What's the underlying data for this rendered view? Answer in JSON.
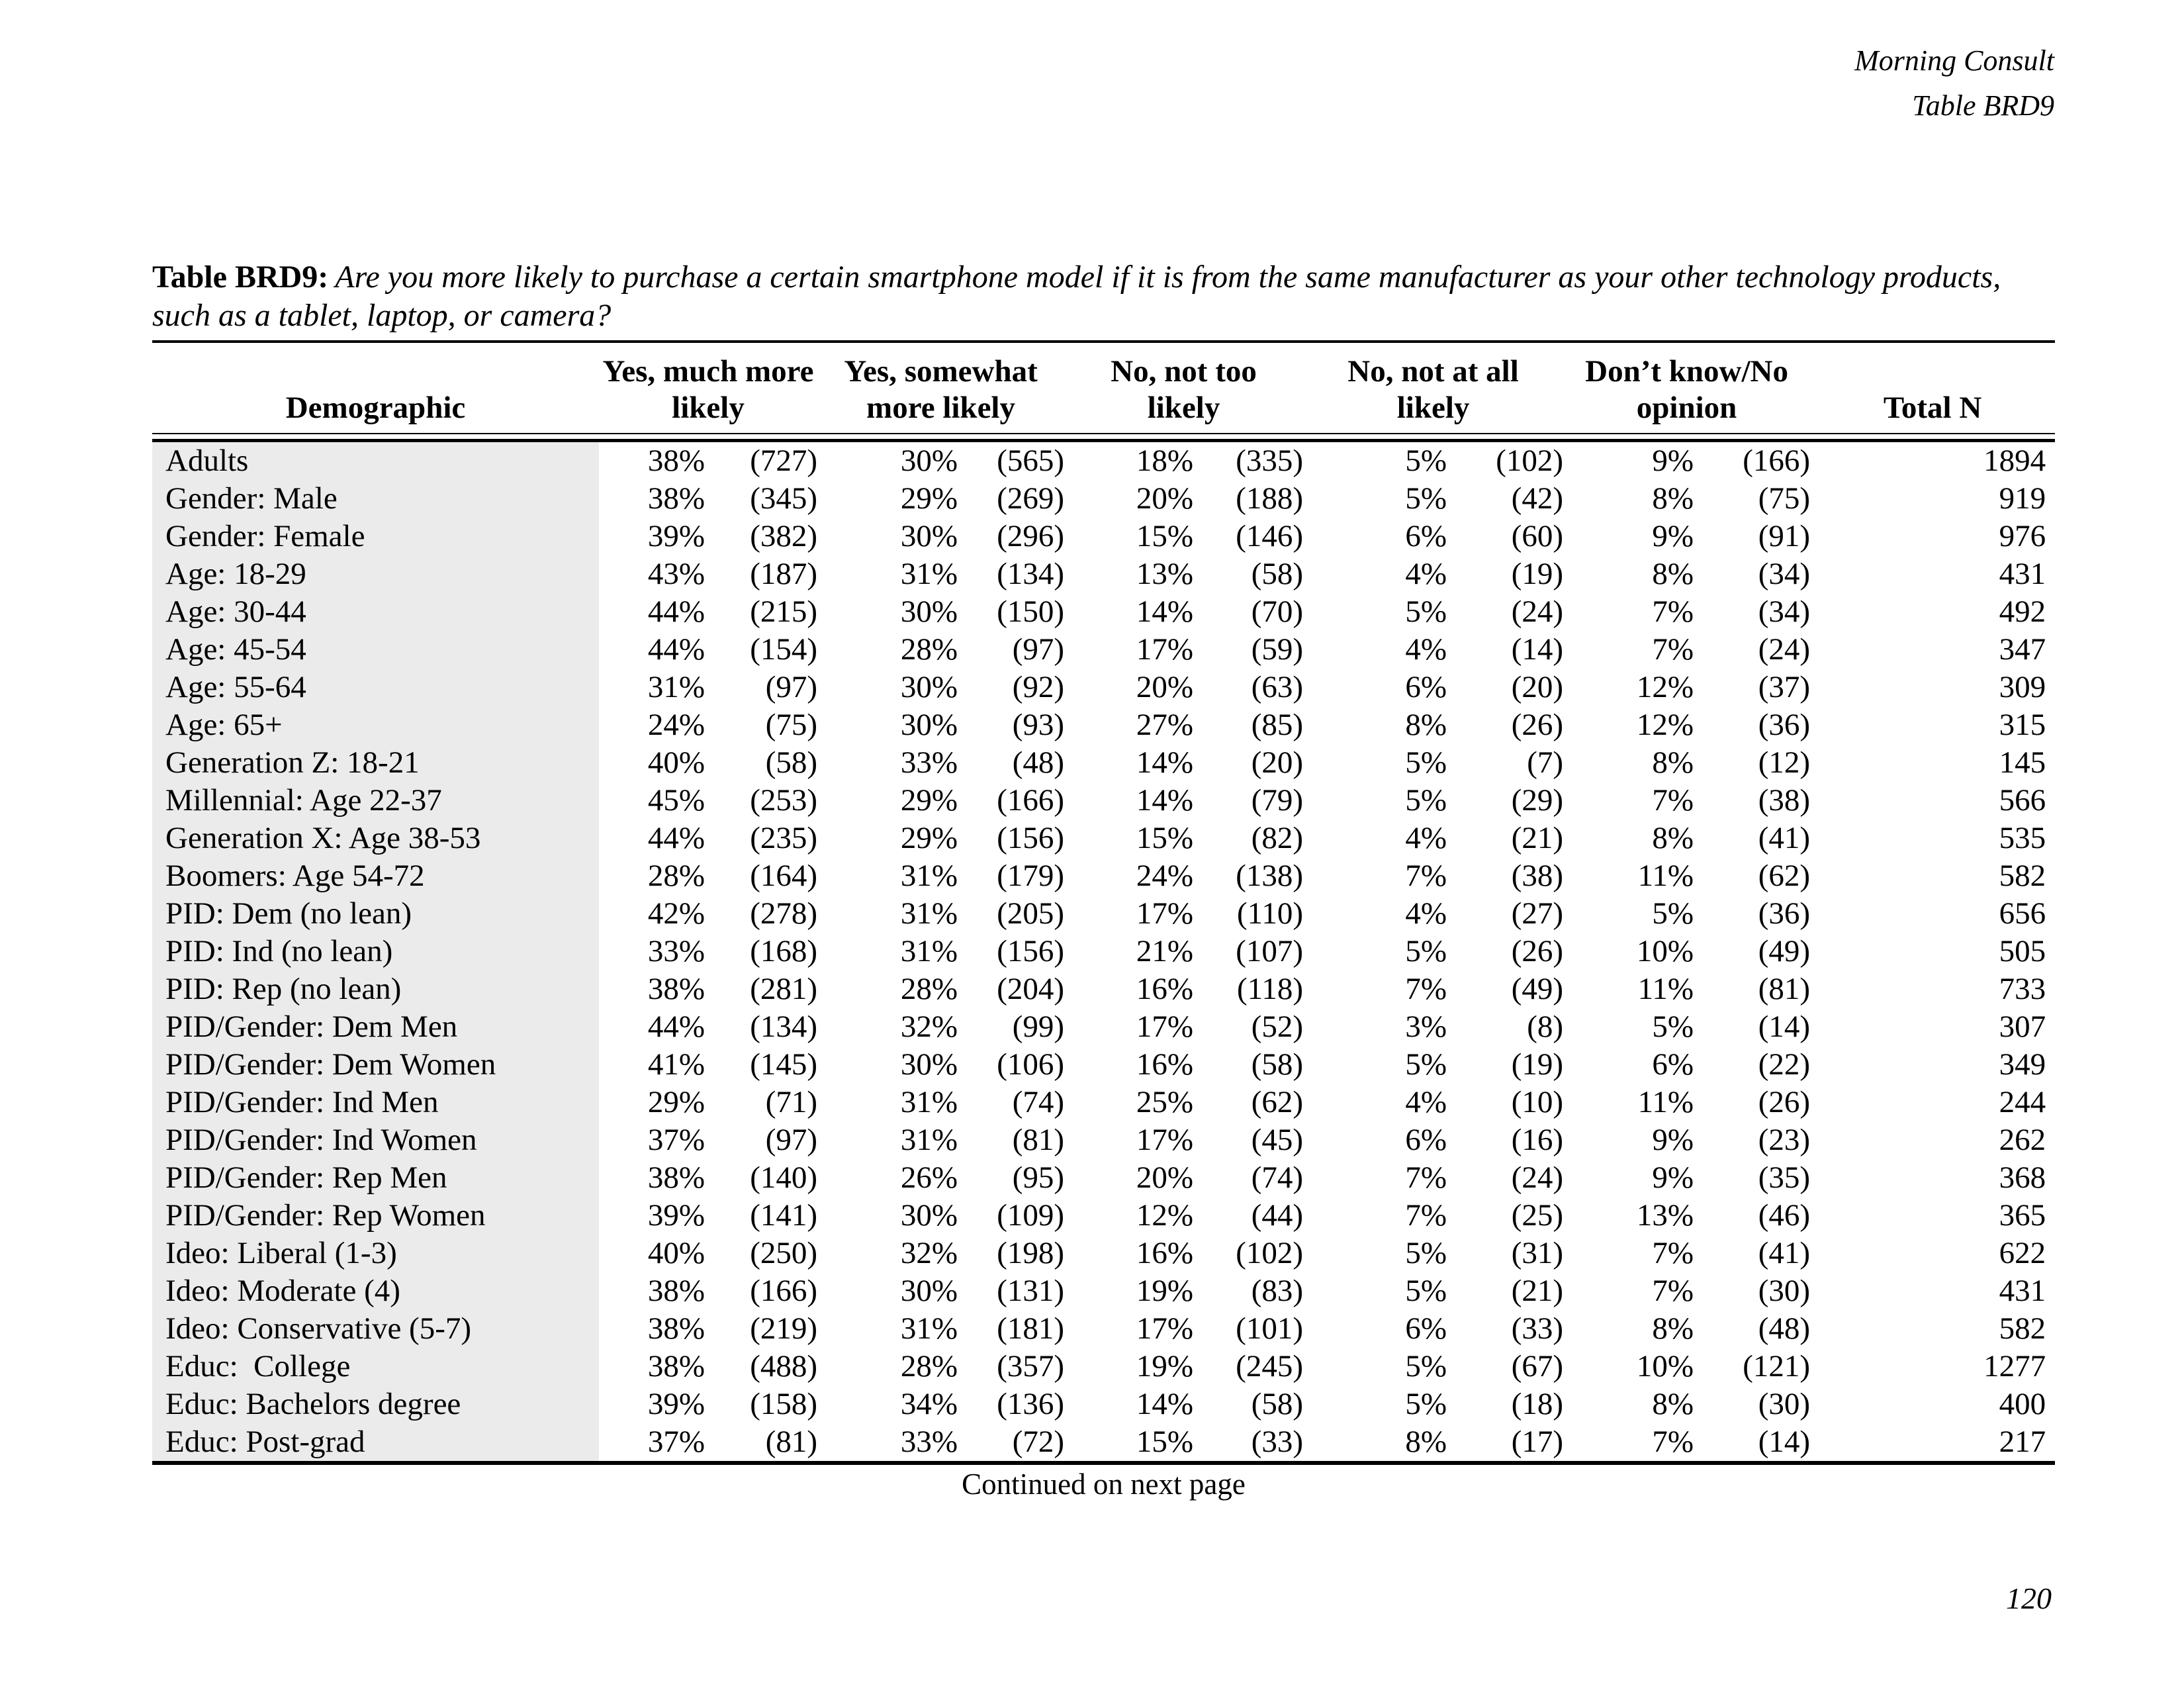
{
  "page": {
    "brand": "Morning Consult",
    "table_ref": "Table BRD9",
    "title_label": "Table BRD9:",
    "title_question": "Are you more likely to purchase a certain smartphone model if it is from the same manufacturer as your other technology products, such as a tablet, laptop, or camera?",
    "continued_note": "Continued on next page",
    "page_number": "120"
  },
  "table": {
    "demographic_header": "Demographic",
    "total_header": "Total N",
    "category_headers": [
      {
        "line1": "Yes, much more",
        "line2": "likely"
      },
      {
        "line1": "Yes, somewhat",
        "line2": "more likely"
      },
      {
        "line1": "No, not too",
        "line2": "likely"
      },
      {
        "line1": "No, not at all",
        "line2": "likely"
      },
      {
        "line1": "Don’t know/No",
        "line2": "opinion"
      }
    ],
    "rows": [
      {
        "demographic": "Adults",
        "values": [
          "38%",
          "(727)",
          "30%",
          "(565)",
          "18%",
          "(335)",
          "5%",
          "(102)",
          "9%",
          "(166)",
          "1894"
        ]
      },
      {
        "demographic": "Gender: Male",
        "values": [
          "38%",
          "(345)",
          "29%",
          "(269)",
          "20%",
          "(188)",
          "5%",
          "(42)",
          "8%",
          "(75)",
          "919"
        ]
      },
      {
        "demographic": "Gender: Female",
        "values": [
          "39%",
          "(382)",
          "30%",
          "(296)",
          "15%",
          "(146)",
          "6%",
          "(60)",
          "9%",
          "(91)",
          "976"
        ]
      },
      {
        "demographic": "Age: 18-29",
        "values": [
          "43%",
          "(187)",
          "31%",
          "(134)",
          "13%",
          "(58)",
          "4%",
          "(19)",
          "8%",
          "(34)",
          "431"
        ]
      },
      {
        "demographic": "Age: 30-44",
        "values": [
          "44%",
          "(215)",
          "30%",
          "(150)",
          "14%",
          "(70)",
          "5%",
          "(24)",
          "7%",
          "(34)",
          "492"
        ]
      },
      {
        "demographic": "Age: 45-54",
        "values": [
          "44%",
          "(154)",
          "28%",
          "(97)",
          "17%",
          "(59)",
          "4%",
          "(14)",
          "7%",
          "(24)",
          "347"
        ]
      },
      {
        "demographic": "Age: 55-64",
        "values": [
          "31%",
          "(97)",
          "30%",
          "(92)",
          "20%",
          "(63)",
          "6%",
          "(20)",
          "12%",
          "(37)",
          "309"
        ]
      },
      {
        "demographic": "Age: 65+",
        "values": [
          "24%",
          "(75)",
          "30%",
          "(93)",
          "27%",
          "(85)",
          "8%",
          "(26)",
          "12%",
          "(36)",
          "315"
        ]
      },
      {
        "demographic": "Generation Z: 18-21",
        "values": [
          "40%",
          "(58)",
          "33%",
          "(48)",
          "14%",
          "(20)",
          "5%",
          "(7)",
          "8%",
          "(12)",
          "145"
        ]
      },
      {
        "demographic": "Millennial: Age 22-37",
        "values": [
          "45%",
          "(253)",
          "29%",
          "(166)",
          "14%",
          "(79)",
          "5%",
          "(29)",
          "7%",
          "(38)",
          "566"
        ]
      },
      {
        "demographic": "Generation X: Age 38-53",
        "values": [
          "44%",
          "(235)",
          "29%",
          "(156)",
          "15%",
          "(82)",
          "4%",
          "(21)",
          "8%",
          "(41)",
          "535"
        ]
      },
      {
        "demographic": "Boomers: Age 54-72",
        "values": [
          "28%",
          "(164)",
          "31%",
          "(179)",
          "24%",
          "(138)",
          "7%",
          "(38)",
          "11%",
          "(62)",
          "582"
        ]
      },
      {
        "demographic": "PID: Dem (no lean)",
        "values": [
          "42%",
          "(278)",
          "31%",
          "(205)",
          "17%",
          "(110)",
          "4%",
          "(27)",
          "5%",
          "(36)",
          "656"
        ]
      },
      {
        "demographic": "PID: Ind (no lean)",
        "values": [
          "33%",
          "(168)",
          "31%",
          "(156)",
          "21%",
          "(107)",
          "5%",
          "(26)",
          "10%",
          "(49)",
          "505"
        ]
      },
      {
        "demographic": "PID: Rep (no lean)",
        "values": [
          "38%",
          "(281)",
          "28%",
          "(204)",
          "16%",
          "(118)",
          "7%",
          "(49)",
          "11%",
          "(81)",
          "733"
        ]
      },
      {
        "demographic": "PID/Gender: Dem Men",
        "values": [
          "44%",
          "(134)",
          "32%",
          "(99)",
          "17%",
          "(52)",
          "3%",
          "(8)",
          "5%",
          "(14)",
          "307"
        ]
      },
      {
        "demographic": "PID/Gender: Dem Women",
        "values": [
          "41%",
          "(145)",
          "30%",
          "(106)",
          "16%",
          "(58)",
          "5%",
          "(19)",
          "6%",
          "(22)",
          "349"
        ]
      },
      {
        "demographic": "PID/Gender: Ind Men",
        "values": [
          "29%",
          "(71)",
          "31%",
          "(74)",
          "25%",
          "(62)",
          "4%",
          "(10)",
          "11%",
          "(26)",
          "244"
        ]
      },
      {
        "demographic": "PID/Gender: Ind Women",
        "values": [
          "37%",
          "(97)",
          "31%",
          "(81)",
          "17%",
          "(45)",
          "6%",
          "(16)",
          "9%",
          "(23)",
          "262"
        ]
      },
      {
        "demographic": "PID/Gender: Rep Men",
        "values": [
          "38%",
          "(140)",
          "26%",
          "(95)",
          "20%",
          "(74)",
          "7%",
          "(24)",
          "9%",
          "(35)",
          "368"
        ]
      },
      {
        "demographic": "PID/Gender: Rep Women",
        "values": [
          "39%",
          "(141)",
          "30%",
          "(109)",
          "12%",
          "(44)",
          "7%",
          "(25)",
          "13%",
          "(46)",
          "365"
        ]
      },
      {
        "demographic": "Ideo: Liberal (1-3)",
        "values": [
          "40%",
          "(250)",
          "32%",
          "(198)",
          "16%",
          "(102)",
          "5%",
          "(31)",
          "7%",
          "(41)",
          "622"
        ]
      },
      {
        "demographic": "Ideo: Moderate (4)",
        "values": [
          "38%",
          "(166)",
          "30%",
          "(131)",
          "19%",
          "(83)",
          "5%",
          "(21)",
          "7%",
          "(30)",
          "431"
        ]
      },
      {
        "demographic": "Ideo: Conservative (5-7)",
        "values": [
          "38%",
          "(219)",
          "31%",
          "(181)",
          "17%",
          "(101)",
          "6%",
          "(33)",
          "8%",
          "(48)",
          "582"
        ]
      },
      {
        "demographic": "Educ:  College",
        "values": [
          "38%",
          "(488)",
          "28%",
          "(357)",
          "19%",
          "(245)",
          "5%",
          "(67)",
          "10%",
          "(121)",
          "1277"
        ]
      },
      {
        "demographic": "Educ: Bachelors degree",
        "values": [
          "39%",
          "(158)",
          "34%",
          "(136)",
          "14%",
          "(58)",
          "5%",
          "(18)",
          "8%",
          "(30)",
          "400"
        ]
      },
      {
        "demographic": "Educ: Post-grad",
        "values": [
          "37%",
          "(81)",
          "33%",
          "(72)",
          "15%",
          "(33)",
          "8%",
          "(17)",
          "7%",
          "(14)",
          "217"
        ]
      }
    ]
  },
  "colors": {
    "row_label_bg": "#ebebeb",
    "text": "#000000",
    "page_bg": "#ffffff"
  }
}
